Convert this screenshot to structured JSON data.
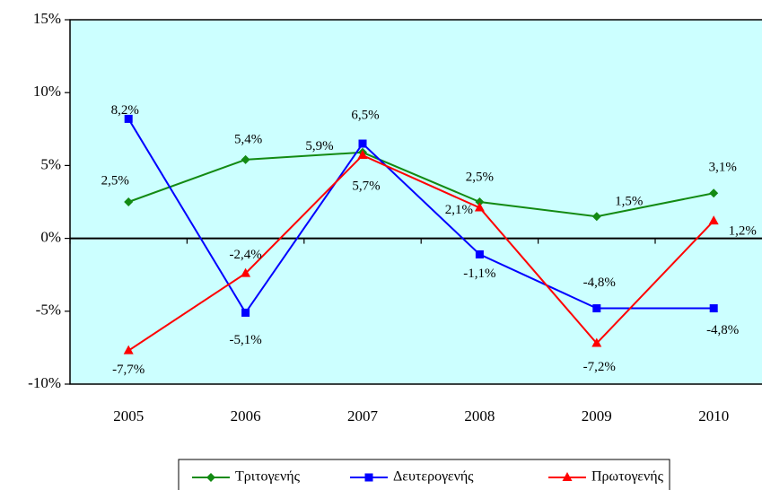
{
  "chart_data": {
    "type": "line",
    "categories": [
      "2005",
      "2006",
      "2007",
      "2008",
      "2009",
      "2010"
    ],
    "series": [
      {
        "name": "Τριτογενής",
        "color": "#138a13",
        "marker": "diamond",
        "values": [
          2.5,
          5.4,
          5.9,
          2.5,
          1.5,
          3.1
        ],
        "value_labels": [
          "2,5%",
          "5,4%",
          "5,9%",
          "2,5%",
          "1,5%",
          "3,1%"
        ]
      },
      {
        "name": "Δευτερογενής",
        "color": "#0000ff",
        "marker": "square",
        "values": [
          8.2,
          -5.1,
          6.5,
          -1.1,
          -4.8,
          -4.8
        ],
        "value_labels": [
          "8,2%",
          "-5,1%",
          "6,5%",
          "-1,1%",
          "-4,8%",
          "-4,8%"
        ]
      },
      {
        "name": "Πρωτογενής",
        "color": "#ff0000",
        "marker": "triangle",
        "values": [
          -7.7,
          -2.4,
          5.7,
          2.1,
          -7.2,
          1.2
        ],
        "value_labels": [
          "-7,7%",
          "-2,4%",
          "5,7%",
          "2,1%",
          "-7,2%",
          "1,2%"
        ]
      }
    ],
    "ylim": [
      -10,
      15
    ],
    "yticks": [
      {
        "value": -10,
        "label": "-10%"
      },
      {
        "value": -5,
        "label": "-5%"
      },
      {
        "value": 0,
        "label": "0%"
      },
      {
        "value": 5,
        "label": "5%"
      },
      {
        "value": 10,
        "label": "10%"
      },
      {
        "value": 15,
        "label": "15%"
      }
    ],
    "plot_background": "#ccffff",
    "legend": "bottom"
  }
}
